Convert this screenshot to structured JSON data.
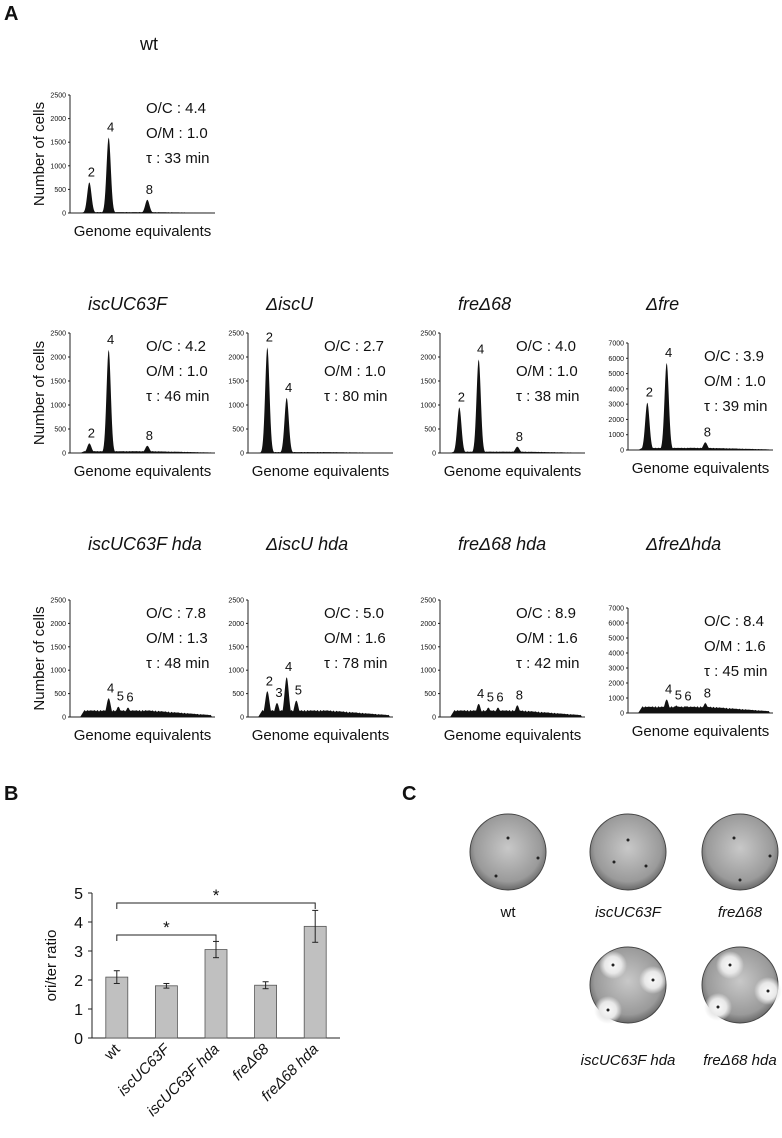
{
  "figure": {
    "labels": [
      "A",
      "B",
      "C"
    ]
  },
  "chart_data": [
    {
      "type": "histogram",
      "title": "wt",
      "italic": false,
      "annotations": [
        "O/C : 4.4",
        "O/M : 1.0",
        "τ : 33 min"
      ],
      "ylabel": "Number of cells",
      "xlabel": "Genome equivalents",
      "xlim": [
        0,
        15
      ],
      "ylim": [
        0,
        2500
      ],
      "yticks": [
        0,
        500,
        1000,
        1500,
        2000,
        2500
      ],
      "color": "#111111",
      "background": 20,
      "peaks": [
        {
          "x": 2,
          "value": 650
        },
        {
          "x": 4,
          "value": 1600
        },
        {
          "x": 8,
          "value": 280
        }
      ]
    },
    {
      "type": "histogram",
      "title": "iscUC63F",
      "italic": true,
      "annotations": [
        "O/C : 4.2",
        "O/M : 1.0",
        "τ : 46 min"
      ],
      "ylabel": "Number of cells",
      "xlabel": "Genome equivalents",
      "xlim": [
        0,
        15
      ],
      "ylim": [
        0,
        2500
      ],
      "yticks": [
        0,
        500,
        1000,
        1500,
        2000,
        2500
      ],
      "color": "#111111",
      "background": 40,
      "peaks": [
        {
          "x": 2,
          "value": 200
        },
        {
          "x": 4,
          "value": 2150
        },
        {
          "x": 8,
          "value": 150
        }
      ]
    },
    {
      "type": "histogram",
      "title": "ΔiscU",
      "italic": true,
      "annotations": [
        "O/C : 2.7",
        "O/M : 1.0",
        "τ : 80 min"
      ],
      "xlabel": "Genome equivalents",
      "xlim": [
        0,
        15
      ],
      "ylim": [
        0,
        2500
      ],
      "yticks": [
        0,
        500,
        1000,
        1500,
        2000,
        2500
      ],
      "color": "#111111",
      "background": 20,
      "peaks": [
        {
          "x": 2,
          "value": 2200
        },
        {
          "x": 4,
          "value": 1150
        }
      ]
    },
    {
      "type": "histogram",
      "title": "freΔ68",
      "italic": true,
      "annotations": [
        "O/C : 4.0",
        "O/M : 1.0",
        "τ : 38 min"
      ],
      "xlabel": "Genome equivalents",
      "xlim": [
        0,
        15
      ],
      "ylim": [
        0,
        2500
      ],
      "yticks": [
        0,
        500,
        1000,
        1500,
        2000,
        2500
      ],
      "color": "#111111",
      "background": 30,
      "peaks": [
        {
          "x": 2,
          "value": 950
        },
        {
          "x": 4,
          "value": 1950
        },
        {
          "x": 8,
          "value": 130
        }
      ]
    },
    {
      "type": "histogram",
      "title": "Δfre",
      "italic": true,
      "annotations": [
        "O/C : 3.9",
        "O/M : 1.0",
        "τ : 39 min"
      ],
      "xlabel": "Genome equivalents",
      "xlim": [
        0,
        15
      ],
      "ylim": [
        0,
        7000
      ],
      "yticks": [
        0,
        1000,
        2000,
        3000,
        4000,
        5000,
        6000,
        7000
      ],
      "color": "#111111",
      "background": 150,
      "peaks": [
        {
          "x": 2,
          "value": 3100
        },
        {
          "x": 4,
          "value": 5700
        },
        {
          "x": 8,
          "value": 500
        }
      ]
    },
    {
      "type": "histogram",
      "title": "iscUC63F hda",
      "italic": true,
      "annotations": [
        "O/C : 7.8",
        "O/M : 1.3",
        "τ : 48 min"
      ],
      "ylabel": "Number of cells",
      "xlabel": "Genome equivalents",
      "xlim": [
        0,
        15
      ],
      "ylim": [
        0,
        2500
      ],
      "yticks": [
        0,
        500,
        1000,
        1500,
        2000,
        2500
      ],
      "color": "#111111",
      "background": 150,
      "peaks": [
        {
          "x": 4,
          "value": 400
        },
        {
          "x": 5,
          "value": 220
        },
        {
          "x": 6,
          "value": 200
        }
      ]
    },
    {
      "type": "histogram",
      "title": "ΔiscU hda",
      "italic": true,
      "annotations": [
        "O/C : 5.0",
        "O/M : 1.6",
        "τ : 78 min"
      ],
      "xlabel": "Genome equivalents",
      "xlim": [
        0,
        15
      ],
      "ylim": [
        0,
        2500
      ],
      "yticks": [
        0,
        500,
        1000,
        1500,
        2000,
        2500
      ],
      "color": "#111111",
      "background": 150,
      "peaks": [
        {
          "x": 2,
          "value": 550
        },
        {
          "x": 3,
          "value": 300
        },
        {
          "x": 4,
          "value": 850
        },
        {
          "x": 5,
          "value": 350
        }
      ]
    },
    {
      "type": "histogram",
      "title": "freΔ68 hda",
      "italic": true,
      "annotations": [
        "O/C : 8.9",
        "O/M : 1.6",
        "τ : 42 min"
      ],
      "xlabel": "Genome equivalents",
      "xlim": [
        0,
        15
      ],
      "ylim": [
        0,
        2500
      ],
      "yticks": [
        0,
        500,
        1000,
        1500,
        2000,
        2500
      ],
      "color": "#111111",
      "background": 150,
      "peaks": [
        {
          "x": 4,
          "value": 280
        },
        {
          "x": 5,
          "value": 200
        },
        {
          "x": 6,
          "value": 200
        },
        {
          "x": 8,
          "value": 250
        }
      ]
    },
    {
      "type": "histogram",
      "title": "ΔfreΔhda",
      "italic": true,
      "annotations": [
        "O/C : 8.4",
        "O/M : 1.6",
        "τ : 45 min"
      ],
      "xlabel": "Genome equivalents",
      "xlim": [
        0,
        15
      ],
      "ylim": [
        0,
        7000
      ],
      "yticks": [
        0,
        1000,
        2000,
        3000,
        4000,
        5000,
        6000,
        7000
      ],
      "color": "#111111",
      "background": 450,
      "peaks": [
        {
          "x": 4,
          "value": 900
        },
        {
          "x": 5,
          "value": 500
        },
        {
          "x": 6,
          "value": 450
        },
        {
          "x": 8,
          "value": 650
        }
      ]
    },
    {
      "type": "bar",
      "ylabel": "ori/ter ratio",
      "categories": [
        "wt",
        "iscUC63F",
        "iscUC63F hda",
        "freΔ68",
        "freΔ68 hda"
      ],
      "category_italic": [
        false,
        true,
        true,
        true,
        true
      ],
      "values": [
        2.1,
        1.8,
        3.05,
        1.82,
        3.85
      ],
      "errors": [
        0.22,
        0.08,
        0.28,
        0.12,
        0.55
      ],
      "color": "#c0c0c0",
      "ylim": [
        0,
        5
      ],
      "yticks": [
        0,
        1,
        2,
        3,
        4,
        5
      ],
      "brackets": [
        {
          "from": 0,
          "to": 4,
          "label": "*"
        },
        {
          "from": 0,
          "to": 2,
          "label": "*"
        }
      ]
    }
  ],
  "plates": [
    "wt",
    "iscUC63F",
    "freΔ68",
    "iscUC63F hda",
    "freΔ68 hda"
  ]
}
